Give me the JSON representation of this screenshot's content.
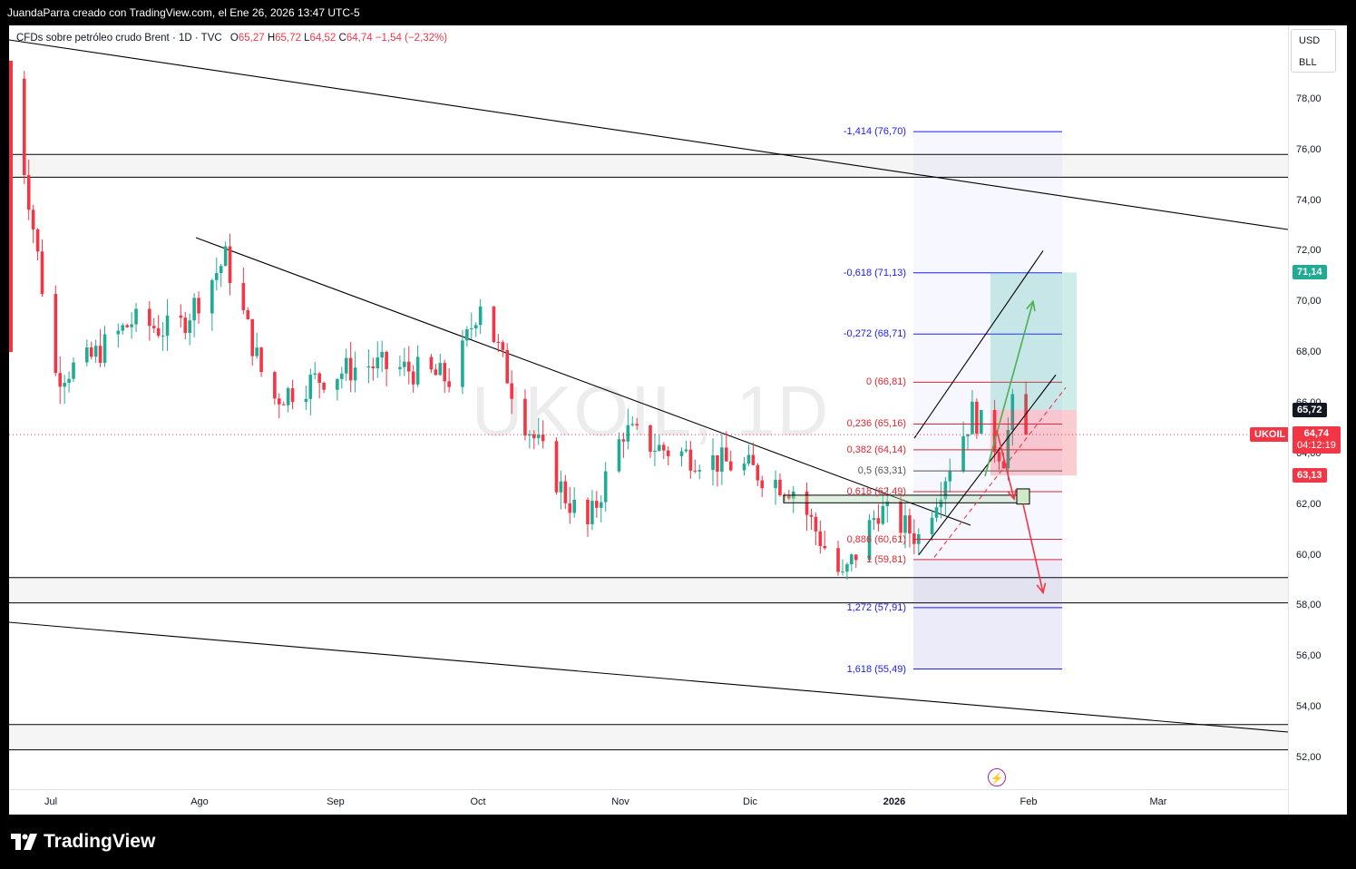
{
  "header": {
    "text": "JuandaParra creado con TradingView.com, el Ene 26, 2026 13:47 UTC-5"
  },
  "legend": {
    "name": "CFDs sobre petróleo crudo Brent · 1D · TVC",
    "open_label": "O",
    "open": "65,27",
    "high_label": "H",
    "high": "65,72",
    "low_label": "L",
    "low": "64,52",
    "close_label": "C",
    "close": "64,74",
    "change": "−1,54 (−2,32%)"
  },
  "watermark": "UKOIL, 1D",
  "currency": {
    "ccy": "USD",
    "unit": "BLL"
  },
  "price_labels": {
    "target_value": "71,14",
    "high_value": "65,72",
    "symbol": "UKOIL",
    "last_value": "64,74",
    "countdown": "04:12:19",
    "stop_value": "63,13"
  },
  "colors": {
    "up": "#22ab94",
    "down": "#f23645",
    "fib": "#1a1aff",
    "target": "#22ab94",
    "stop": "#f23645"
  },
  "chart_data": {
    "type": "candlestick",
    "y_axis": {
      "ticks": [
        "52,00",
        "54,00",
        "56,00",
        "58,00",
        "60,00",
        "62,00",
        "64,00",
        "66,00",
        "68,00",
        "70,00",
        "72,00",
        "74,00",
        "76,00",
        "78,00"
      ],
      "range": [
        51.2,
        80.2
      ]
    },
    "x_axis": {
      "ticks": [
        "Jul",
        "Ago",
        "Sep",
        "Oct",
        "Nov",
        "Dic",
        "2026",
        "Feb",
        "Mar"
      ],
      "bold_tick": "2026"
    },
    "close_series_approx": {
      "dates": [
        "2025-06-13",
        "2025-06-23",
        "2025-06-30",
        "2025-07-10",
        "2025-07-20",
        "2025-07-31",
        "2025-08-10",
        "2025-08-20",
        "2025-08-31",
        "2025-09-10",
        "2025-09-20",
        "2025-09-26",
        "2025-10-05",
        "2025-10-15",
        "2025-10-20",
        "2025-10-28",
        "2025-11-05",
        "2025-11-15",
        "2025-11-25",
        "2025-12-05",
        "2025-12-16",
        "2025-12-24",
        "2026-01-02",
        "2026-01-08",
        "2026-01-14",
        "2026-01-21",
        "2026-01-23",
        "2026-01-26"
      ],
      "values": [
        78.8,
        67.1,
        67.6,
        69.2,
        68.8,
        71.7,
        66.1,
        66.9,
        67.5,
        67.3,
        66.9,
        70.1,
        65.6,
        62.3,
        61.1,
        64.9,
        64.2,
        63.8,
        63.4,
        62.6,
        59.0,
        61.8,
        60.7,
        63.2,
        65.6,
        63.9,
        65.8,
        64.74
      ]
    },
    "fibonacci": [
      {
        "level": "-1,414",
        "price": 76.7
      },
      {
        "level": "-0,618",
        "price": 71.13
      },
      {
        "level": "-0,272",
        "price": 68.71
      },
      {
        "level": "0",
        "price": 66.81
      },
      {
        "level": "0,236",
        "price": 65.16
      },
      {
        "level": "0,382",
        "price": 64.14
      },
      {
        "level": "0,5",
        "price": 63.31
      },
      {
        "level": "0,618",
        "price": 62.49
      },
      {
        "level": "0,886",
        "price": 60.61
      },
      {
        "level": "1",
        "price": 59.81
      },
      {
        "level": "1,272",
        "price": 57.91
      },
      {
        "level": "1,618",
        "price": 55.49
      }
    ],
    "horizontal_zones": [
      [
        74.9,
        75.8
      ],
      [
        58.1,
        59.1
      ],
      [
        52.3,
        53.3
      ]
    ],
    "position": {
      "entry": 65.72,
      "target": 71.14,
      "stop": 63.13
    },
    "last_price": 64.74
  }
}
